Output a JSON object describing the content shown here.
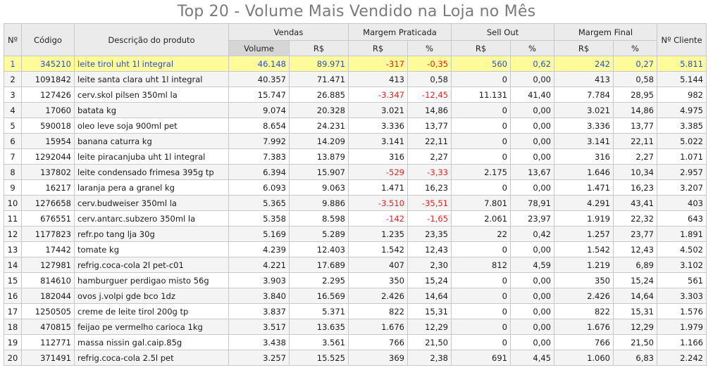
{
  "chart_data": {
    "type": "table",
    "title": "Top 20 - Volume Mais Vendido na Loja no Mês",
    "group_headers": {
      "num": "Nº",
      "codigo": "Código",
      "descricao": "Descrição do produto",
      "vendas": "Vendas",
      "margem_praticada": "Margem Praticada",
      "sell_out": "Sell Out",
      "margem_final": "Margem Final",
      "n_cliente": "Nº Cliente"
    },
    "sub_headers": {
      "volume": "Volume",
      "vendas_rs": "R$",
      "mp_rs": "R$",
      "mp_pct": "%",
      "so_rs": "R$",
      "so_pct": "%",
      "mf_rs": "R$",
      "mf_pct": "%"
    },
    "rows": [
      [
        "1",
        "345210",
        "leite tirol uht 1l integral",
        "46.148",
        "89.971",
        "-317",
        "-0,35",
        "560",
        "0,62",
        "242",
        "0,27",
        "5.811"
      ],
      [
        "2",
        "1091842",
        "leite santa clara uht 1l integral",
        "40.357",
        "71.471",
        "413",
        "0,58",
        "0",
        "0,00",
        "413",
        "0,58",
        "5.144"
      ],
      [
        "3",
        "127426",
        "cerv.skol pilsen 350ml la",
        "15.747",
        "26.885",
        "-3.347",
        "-12,45",
        "11.131",
        "41,40",
        "7.784",
        "28,95",
        "982"
      ],
      [
        "4",
        "17060",
        "batata kg",
        "9.074",
        "20.328",
        "3.021",
        "14,86",
        "0",
        "0,00",
        "3.021",
        "14,86",
        "4.975"
      ],
      [
        "5",
        "590018",
        "oleo leve soja 900ml pet",
        "8.654",
        "24.231",
        "3.336",
        "13,77",
        "0",
        "0,00",
        "3.336",
        "13,77",
        "3.385"
      ],
      [
        "6",
        "15954",
        "banana caturra kg",
        "7.992",
        "14.209",
        "3.141",
        "22,11",
        "0",
        "0,00",
        "3.141",
        "22,11",
        "5.022"
      ],
      [
        "7",
        "1292044",
        "leite piracanjuba uht 1l integral",
        "7.383",
        "13.879",
        "316",
        "2,27",
        "0",
        "0,00",
        "316",
        "2,27",
        "1.071"
      ],
      [
        "8",
        "137802",
        "leite condensado frimesa 395g tp",
        "6.394",
        "15.907",
        "-529",
        "-3,33",
        "2.175",
        "13,67",
        "1.646",
        "10,34",
        "2.957"
      ],
      [
        "9",
        "16217",
        "laranja pera a granel kg",
        "6.093",
        "9.063",
        "1.471",
        "16,23",
        "0",
        "0,00",
        "1.471",
        "16,23",
        "3.207"
      ],
      [
        "10",
        "1276658",
        "cerv.budweiser 350ml la",
        "5.365",
        "9.886",
        "-3.510",
        "-35,51",
        "7.801",
        "78,91",
        "4.291",
        "43,41",
        "403"
      ],
      [
        "11",
        "676551",
        "cerv.antarc.subzero 350ml la",
        "5.358",
        "8.598",
        "-142",
        "-1,65",
        "2.061",
        "23,97",
        "1.919",
        "22,32",
        "643"
      ],
      [
        "12",
        "1177823",
        "refr.po tang lja 30g",
        "5.169",
        "5.289",
        "1.235",
        "23,35",
        "22",
        "0,42",
        "1.257",
        "23,77",
        "1.891"
      ],
      [
        "13",
        "17442",
        "tomate kg",
        "4.239",
        "12.403",
        "1.542",
        "12,43",
        "0",
        "0,00",
        "1.542",
        "12,43",
        "4.502"
      ],
      [
        "14",
        "127981",
        "refrig.coca-cola 2l pet-c01",
        "4.221",
        "17.689",
        "407",
        "2,30",
        "812",
        "4,59",
        "1.219",
        "6,89",
        "3.102"
      ],
      [
        "15",
        "814610",
        "hamburguer perdigao misto 56g",
        "3.903",
        "2.295",
        "350",
        "15,24",
        "0",
        "0,00",
        "350",
        "15,24",
        "561"
      ],
      [
        "16",
        "182044",
        "ovos j.volpi gde bco 1dz",
        "3.840",
        "16.569",
        "2.426",
        "14,64",
        "0",
        "0,00",
        "2.426",
        "14,64",
        "3.303"
      ],
      [
        "17",
        "1250505",
        "creme de leite tirol 200g tp",
        "3.837",
        "5.371",
        "822",
        "15,31",
        "0",
        "0,00",
        "822",
        "15,31",
        "1.576"
      ],
      [
        "18",
        "470815",
        "feijao pe vermelho carioca 1kg",
        "3.517",
        "13.635",
        "1.676",
        "12,29",
        "0",
        "0,00",
        "1.676",
        "12,29",
        "1.979"
      ],
      [
        "19",
        "112771",
        "massa nissin gal.caip.85g",
        "3.438",
        "3.561",
        "766",
        "21,50",
        "0",
        "0,00",
        "766",
        "21,50",
        "1.166"
      ],
      [
        "20",
        "371491",
        "refrig.coca-cola 2.5l pet",
        "3.257",
        "15.525",
        "369",
        "2,38",
        "691",
        "4,45",
        "1.060",
        "6,83",
        "2.242"
      ]
    ],
    "selected_row": 0,
    "colors": {
      "selected_row_bg": "#fdfb9a",
      "selected_row_text": "#2a4fd0",
      "negative_text": "#e0211f",
      "header_bg": "#ebebeb",
      "sorted_header_bg": "#d6d6d6"
    }
  }
}
